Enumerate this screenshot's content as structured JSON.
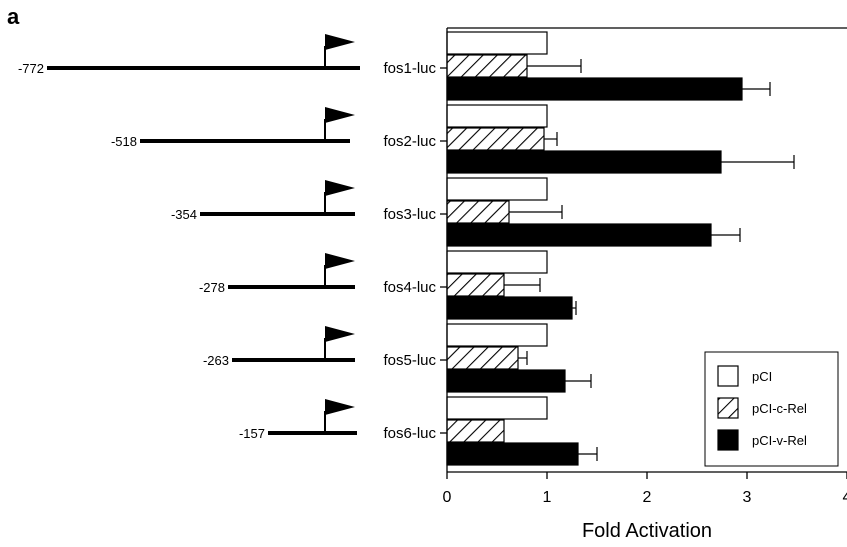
{
  "panel_label": "a",
  "chart_data": {
    "type": "bar",
    "orientation": "horizontal",
    "categories": [
      "fos1-luc",
      "fos2-luc",
      "fos3-luc",
      "fos4-luc",
      "fos5-luc",
      "fos6-luc"
    ],
    "promoter_starts": [
      "-772",
      "-518",
      "-354",
      "-278",
      "-263",
      "-157"
    ],
    "series": [
      {
        "name": "pCI",
        "values": [
          1.0,
          1.0,
          1.0,
          1.0,
          1.0,
          1.0
        ],
        "errors": [
          0,
          0,
          0,
          0,
          0,
          0
        ],
        "fill": "white"
      },
      {
        "name": "pCI-c-Rel",
        "values": [
          0.8,
          0.97,
          0.62,
          0.57,
          0.71,
          0.57
        ],
        "errors": [
          0.54,
          0.13,
          0.53,
          0.36,
          0.09,
          0
        ],
        "fill": "hatch"
      },
      {
        "name": "pCI-v-Rel",
        "values": [
          2.95,
          2.74,
          2.64,
          1.25,
          1.18,
          1.31
        ],
        "errors": [
          0.28,
          0.73,
          0.29,
          0.04,
          0.26,
          0.19
        ],
        "fill": "black"
      }
    ],
    "xlabel": "Fold Activation",
    "xlim": [
      0,
      4
    ],
    "xticks": [
      "0",
      "1",
      "2",
      "3",
      "4"
    ],
    "legend": "bottom-right",
    "grid": false
  }
}
